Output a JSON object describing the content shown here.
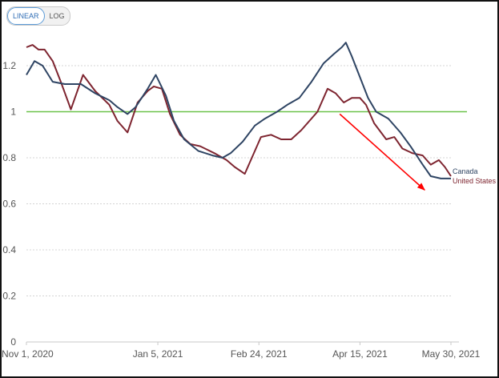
{
  "scale_toggle": {
    "options": [
      "LINEAR",
      "LOG"
    ],
    "active": "LINEAR"
  },
  "chart_data": {
    "type": "line",
    "title": "",
    "xlabel": "",
    "ylabel": "",
    "x_tick_labels": [
      "Nov 1, 2020",
      "Jan 5, 2021",
      "Feb 24, 2021",
      "Apr 15, 2021",
      "May 30, 2021"
    ],
    "x_tick_dates": [
      "2020-11-01",
      "2021-01-05",
      "2021-02-24",
      "2021-04-15",
      "2021-05-30"
    ],
    "xlim": [
      "2020-11-01",
      "2021-05-30"
    ],
    "y_ticks": [
      0,
      0.2,
      0.4,
      0.6,
      0.8,
      1,
      1.2
    ],
    "ylim": [
      0,
      1.2
    ],
    "grid": true,
    "reference_line": {
      "y": 1,
      "color": "#6cc24a"
    },
    "arrow_annotation": {
      "from": [
        "2021-04-05",
        0.99
      ],
      "to": [
        "2021-05-17",
        0.66
      ],
      "color": "#ff0000"
    },
    "series": [
      {
        "name": "Canada",
        "color": "#2e4463",
        "points": [
          [
            "2020-11-01",
            1.16
          ],
          [
            "2020-11-05",
            1.22
          ],
          [
            "2020-11-09",
            1.2
          ],
          [
            "2020-11-14",
            1.13
          ],
          [
            "2020-11-20",
            1.12
          ],
          [
            "2020-11-28",
            1.12
          ],
          [
            "2020-12-05",
            1.08
          ],
          [
            "2020-12-12",
            1.05
          ],
          [
            "2020-12-16",
            1.02
          ],
          [
            "2020-12-21",
            0.99
          ],
          [
            "2020-12-25",
            1.02
          ],
          [
            "2020-12-31",
            1.1
          ],
          [
            "2021-01-04",
            1.16
          ],
          [
            "2021-01-09",
            1.07
          ],
          [
            "2021-01-13",
            0.96
          ],
          [
            "2021-01-18",
            0.88
          ],
          [
            "2021-01-25",
            0.83
          ],
          [
            "2021-02-01",
            0.81
          ],
          [
            "2021-02-06",
            0.8
          ],
          [
            "2021-02-10",
            0.82
          ],
          [
            "2021-02-16",
            0.87
          ],
          [
            "2021-02-22",
            0.94
          ],
          [
            "2021-02-27",
            0.97
          ],
          [
            "2021-03-05",
            1.0
          ],
          [
            "2021-03-10",
            1.03
          ],
          [
            "2021-03-16",
            1.06
          ],
          [
            "2021-03-22",
            1.13
          ],
          [
            "2021-03-28",
            1.21
          ],
          [
            "2021-04-02",
            1.25
          ],
          [
            "2021-04-06",
            1.28
          ],
          [
            "2021-04-08",
            1.3
          ],
          [
            "2021-04-11",
            1.24
          ],
          [
            "2021-04-15",
            1.15
          ],
          [
            "2021-04-19",
            1.06
          ],
          [
            "2021-04-23",
            1.0
          ],
          [
            "2021-04-29",
            0.97
          ],
          [
            "2021-05-05",
            0.91
          ],
          [
            "2021-05-10",
            0.85
          ],
          [
            "2021-05-16",
            0.77
          ],
          [
            "2021-05-20",
            0.72
          ],
          [
            "2021-05-25",
            0.71
          ],
          [
            "2021-05-30",
            0.71
          ]
        ]
      },
      {
        "name": "United States",
        "color": "#7e2530",
        "points": [
          [
            "2020-11-01",
            1.28
          ],
          [
            "2020-11-04",
            1.29
          ],
          [
            "2020-11-07",
            1.27
          ],
          [
            "2020-11-10",
            1.27
          ],
          [
            "2020-11-14",
            1.22
          ],
          [
            "2020-11-18",
            1.13
          ],
          [
            "2020-11-23",
            1.01
          ],
          [
            "2020-11-29",
            1.16
          ],
          [
            "2020-12-05",
            1.09
          ],
          [
            "2020-12-12",
            1.03
          ],
          [
            "2020-12-16",
            0.96
          ],
          [
            "2020-12-21",
            0.91
          ],
          [
            "2020-12-26",
            1.04
          ],
          [
            "2020-12-31",
            1.09
          ],
          [
            "2021-01-03",
            1.11
          ],
          [
            "2021-01-07",
            1.1
          ],
          [
            "2021-01-11",
            0.99
          ],
          [
            "2021-01-16",
            0.9
          ],
          [
            "2021-01-21",
            0.86
          ],
          [
            "2021-01-26",
            0.85
          ],
          [
            "2021-02-02",
            0.82
          ],
          [
            "2021-02-08",
            0.79
          ],
          [
            "2021-02-12",
            0.76
          ],
          [
            "2021-02-17",
            0.73
          ],
          [
            "2021-02-21",
            0.81
          ],
          [
            "2021-02-25",
            0.89
          ],
          [
            "2021-03-02",
            0.9
          ],
          [
            "2021-03-07",
            0.88
          ],
          [
            "2021-03-12",
            0.88
          ],
          [
            "2021-03-17",
            0.92
          ],
          [
            "2021-03-21",
            0.96
          ],
          [
            "2021-03-25",
            1.0
          ],
          [
            "2021-03-30",
            1.1
          ],
          [
            "2021-04-03",
            1.08
          ],
          [
            "2021-04-07",
            1.04
          ],
          [
            "2021-04-11",
            1.06
          ],
          [
            "2021-04-15",
            1.06
          ],
          [
            "2021-04-18",
            1.03
          ],
          [
            "2021-04-22",
            0.95
          ],
          [
            "2021-04-28",
            0.88
          ],
          [
            "2021-05-02",
            0.89
          ],
          [
            "2021-05-06",
            0.84
          ],
          [
            "2021-05-11",
            0.82
          ],
          [
            "2021-05-16",
            0.81
          ],
          [
            "2021-05-20",
            0.77
          ],
          [
            "2021-05-24",
            0.79
          ],
          [
            "2021-05-27",
            0.76
          ],
          [
            "2021-05-30",
            0.72
          ]
        ]
      }
    ]
  }
}
